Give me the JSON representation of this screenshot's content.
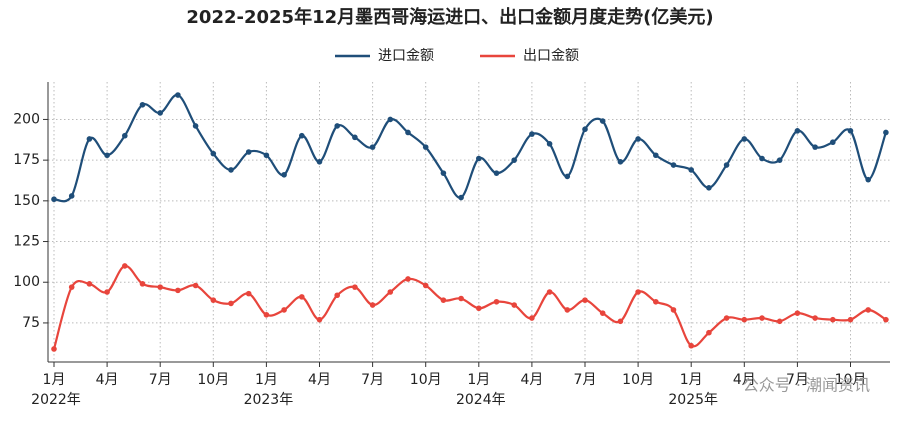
{
  "chart_data": {
    "type": "line",
    "title": "2022-2025年12月墨西哥海运进口、出口金额月度走势(亿美元)",
    "categories": [
      "1月",
      null,
      null,
      "4月",
      null,
      null,
      "7月",
      null,
      null,
      "10月",
      null,
      null,
      "1月",
      null,
      null,
      "4月",
      null,
      null,
      "7月",
      null,
      null,
      "10月",
      null,
      null,
      "1月",
      null,
      null,
      "4月",
      null,
      null,
      "7月",
      null,
      null,
      "10月",
      null,
      null,
      "1月",
      null,
      null,
      "4月",
      null,
      null,
      "7月",
      null,
      null,
      "10月",
      null,
      null
    ],
    "years": [
      "2022年",
      "2023年",
      "2024年",
      "2025年"
    ],
    "series": [
      {
        "name": "进口金额",
        "color": "#1f4e79",
        "values": [
          151,
          153,
          188,
          178,
          190,
          209,
          204,
          215,
          196,
          179,
          169,
          180,
          178,
          166,
          190,
          174,
          196,
          189,
          183,
          200,
          192,
          183,
          167,
          152,
          176,
          167,
          175,
          191,
          185,
          165,
          194,
          199,
          174,
          188,
          178,
          172,
          169,
          158,
          172,
          188,
          176,
          175,
          193,
          183,
          186,
          193,
          163,
          192
        ]
      },
      {
        "name": "出口金额",
        "color": "#e8453c",
        "values": [
          59,
          97,
          99,
          94,
          110,
          99,
          97,
          95,
          98,
          89,
          87,
          93,
          80,
          83,
          91,
          77,
          92,
          97,
          86,
          94,
          102,
          98,
          89,
          90,
          84,
          88,
          86,
          78,
          94,
          83,
          89,
          81,
          76,
          94,
          88,
          83,
          61,
          69,
          78,
          77,
          78,
          76,
          81,
          78,
          77,
          77,
          83,
          77
        ]
      }
    ],
    "ylim": [
      51,
      223
    ],
    "yticks": [
      75,
      100,
      125,
      150,
      175,
      200
    ],
    "grid": true,
    "watermark": "公众号 · 潮闻资讯"
  }
}
